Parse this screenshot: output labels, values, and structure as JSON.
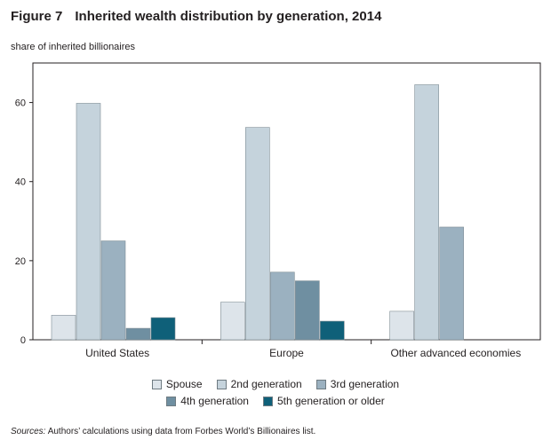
{
  "figure": {
    "label": "Figure 7",
    "title": "Inherited wealth distribution by generation, 2014"
  },
  "source": {
    "prefix": "Sources:",
    "text": "Authors’ calculations using data from Forbes World’s Billionaires list."
  },
  "chart_data": {
    "type": "bar",
    "title": "Inherited wealth distribution by generation, 2014",
    "xlabel": "",
    "ylabel": "share of inherited billionaires",
    "ylim": [
      0,
      70
    ],
    "yticks": [
      0,
      20,
      40,
      60
    ],
    "grid": false,
    "legend_position": "bottom",
    "categories": [
      "United States",
      "Europe",
      "Other advanced economies"
    ],
    "series": [
      {
        "name": "Spouse",
        "color": "#dde4ea",
        "values": [
          6.2,
          9.5,
          7.2
        ]
      },
      {
        "name": "2nd generation",
        "color": "#c5d3dc",
        "values": [
          59.8,
          53.7,
          64.5
        ]
      },
      {
        "name": "3rd generation",
        "color": "#9bb1c0",
        "values": [
          25.0,
          17.1,
          28.5
        ]
      },
      {
        "name": "4th generation",
        "color": "#6f8fa1",
        "values": [
          2.9,
          14.9,
          null
        ]
      },
      {
        "name": "5th generation or older",
        "color": "#0f6079",
        "values": [
          5.6,
          4.7,
          null
        ]
      }
    ]
  }
}
